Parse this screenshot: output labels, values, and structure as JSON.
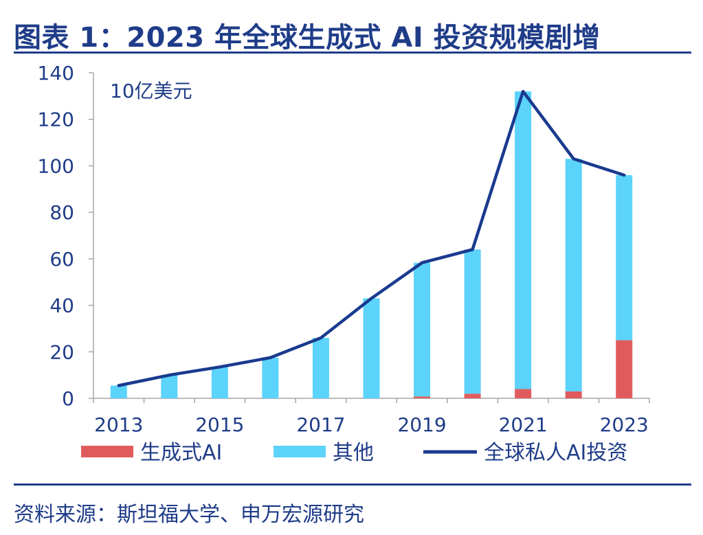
{
  "title": "图表 1：2023 年全球生成式 AI 投资规模剧增",
  "source": "资料来源：斯坦福大学、申万宏源研究",
  "chart_data": {
    "type": "bar",
    "stacked": true,
    "unit_label": "10亿美元",
    "x": [
      "2013",
      "2014",
      "2015",
      "2016",
      "2017",
      "2018",
      "2019",
      "2020",
      "2021",
      "2022",
      "2023"
    ],
    "x_tick_labels": [
      "2013",
      "2015",
      "2017",
      "2019",
      "2021",
      "2023"
    ],
    "ylim": [
      0,
      140
    ],
    "yticks": [
      0,
      20,
      40,
      60,
      80,
      100,
      120,
      140
    ],
    "series": [
      {
        "name": "生成式AI",
        "type": "bar",
        "color": "#e05c5c",
        "values": [
          0,
          0,
          0,
          0,
          0,
          0,
          0.8,
          2,
          4,
          3,
          25
        ]
      },
      {
        "name": "其他",
        "type": "bar",
        "color": "#5bd3fa",
        "values": [
          5.5,
          10,
          13.5,
          17.5,
          26,
          43,
          57.5,
          62,
          128,
          100,
          71
        ]
      },
      {
        "name": "全球私人AI投资",
        "type": "line",
        "color": "#1a3a8f",
        "values": [
          5.5,
          10,
          13.5,
          17.5,
          26,
          43,
          58.3,
          64,
          132,
          103,
          96
        ]
      }
    ],
    "legend": [
      "生成式AI",
      "其他",
      "全球私人AI投资"
    ],
    "legend_position": "bottom",
    "grid": false
  }
}
